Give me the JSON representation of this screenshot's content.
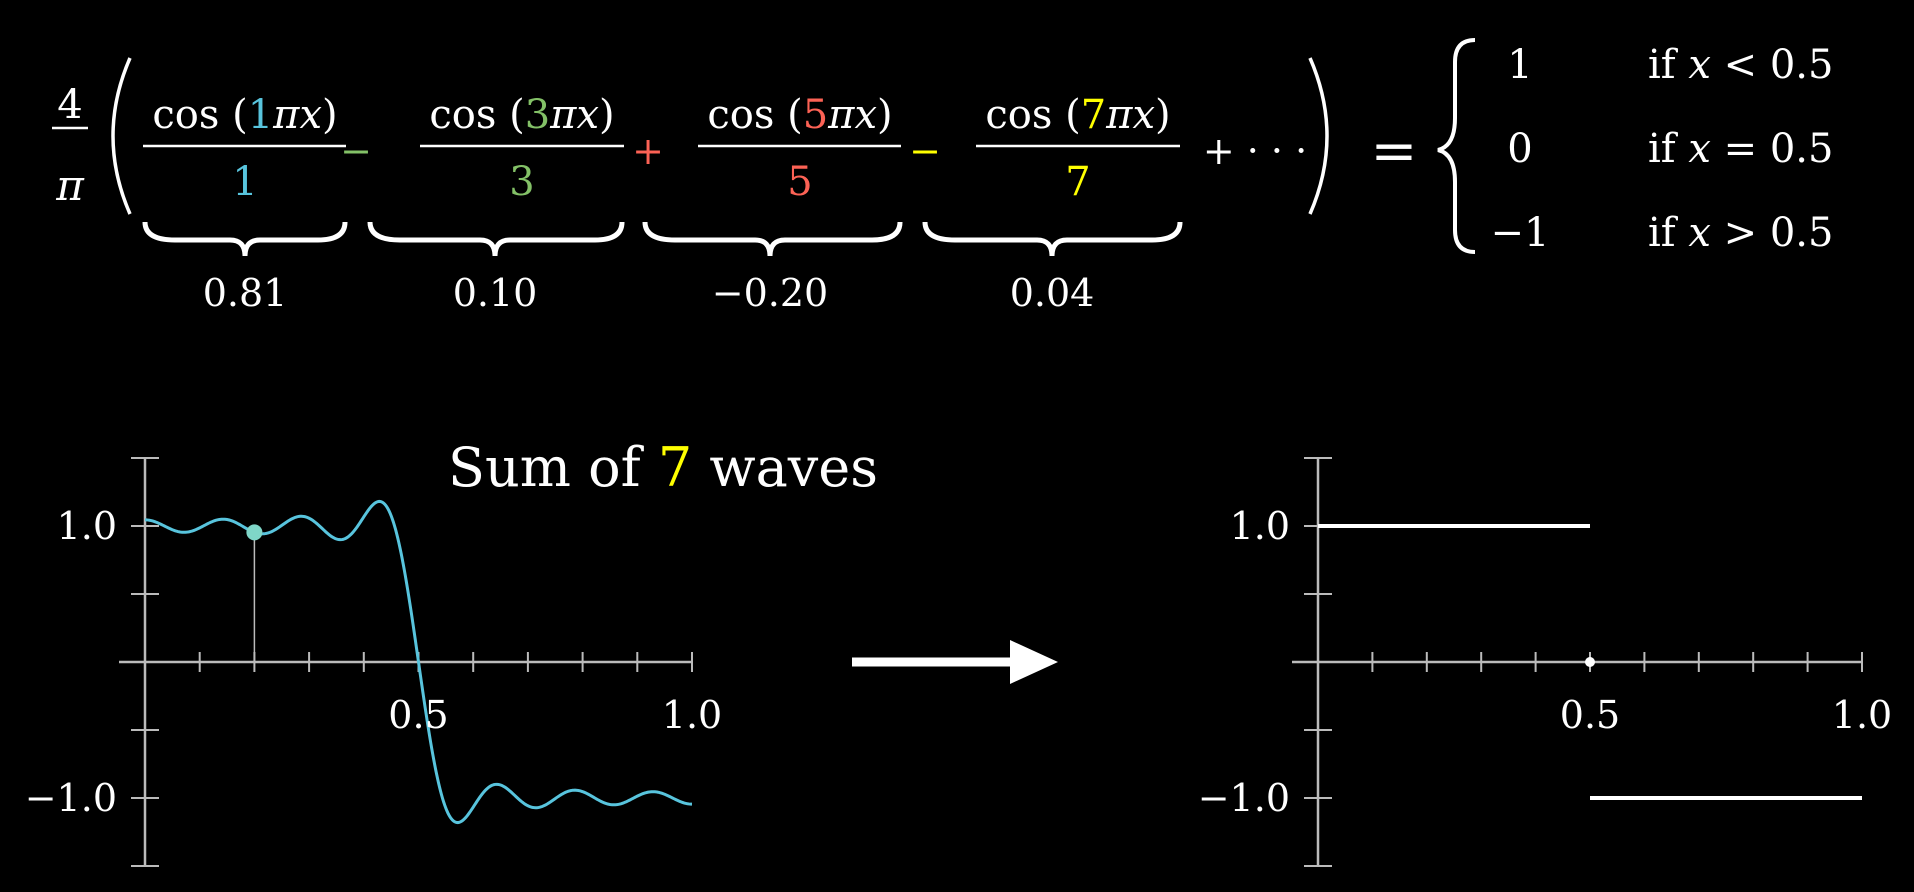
{
  "colors": {
    "background": "#000000",
    "text": "#ffffff",
    "term1": "#58c4dd",
    "term3": "#83c167",
    "term5": "#fc6255",
    "term7": "#ffff00",
    "curve": "#58c4dd",
    "axis": "#bbbbbb"
  },
  "formula": {
    "prefix_num": "4",
    "prefix_den": "π",
    "func": "cos",
    "pi": "π",
    "var": "x",
    "terms": [
      {
        "k": "1",
        "sign": "",
        "value": "0.81"
      },
      {
        "k": "3",
        "sign": "−",
        "value": "0.10"
      },
      {
        "k": "5",
        "sign": "+",
        "value": "−0.20"
      },
      {
        "k": "7",
        "sign": "−",
        "value": "0.04"
      }
    ],
    "tail": "+ · · ·",
    "equals": "=",
    "cases": [
      {
        "value": "1",
        "cond_if": "if",
        "cond_rel": "<",
        "cond_val": "0.5"
      },
      {
        "value": "0",
        "cond_if": "if",
        "cond_rel": "=",
        "cond_val": "0.5"
      },
      {
        "value": "−1",
        "cond_if": "if",
        "cond_rel": ">",
        "cond_val": "0.5"
      }
    ]
  },
  "title": {
    "prefix": "Sum of",
    "count": "7",
    "suffix": "waves"
  },
  "chart_data": [
    {
      "type": "line",
      "series": [
        {
          "function": "fourier_square_wave",
          "terms": 7
        }
      ],
      "xlim": [
        0,
        1.0
      ],
      "ylim": [
        -1.5,
        1.5
      ],
      "y_tick_labels": [
        "1.0",
        "−1.0"
      ],
      "x_tick_labels": [
        "0.5",
        "1.0"
      ],
      "marker": {
        "x": 0.2,
        "y": 0.95
      }
    },
    {
      "type": "line",
      "series": [
        {
          "points": [
            [
              0,
              1.0
            ],
            [
              0.5,
              1.0
            ]
          ]
        },
        {
          "points": [
            [
              0.5,
              -1.0
            ],
            [
              1.0,
              -1.0
            ]
          ]
        }
      ],
      "point": {
        "x": 0.5,
        "y": 0
      },
      "xlim": [
        0,
        1.0
      ],
      "ylim": [
        -1.5,
        1.5
      ],
      "y_tick_labels": [
        "1.0",
        "−1.0"
      ],
      "x_tick_labels": [
        "0.5",
        "1.0"
      ]
    }
  ]
}
